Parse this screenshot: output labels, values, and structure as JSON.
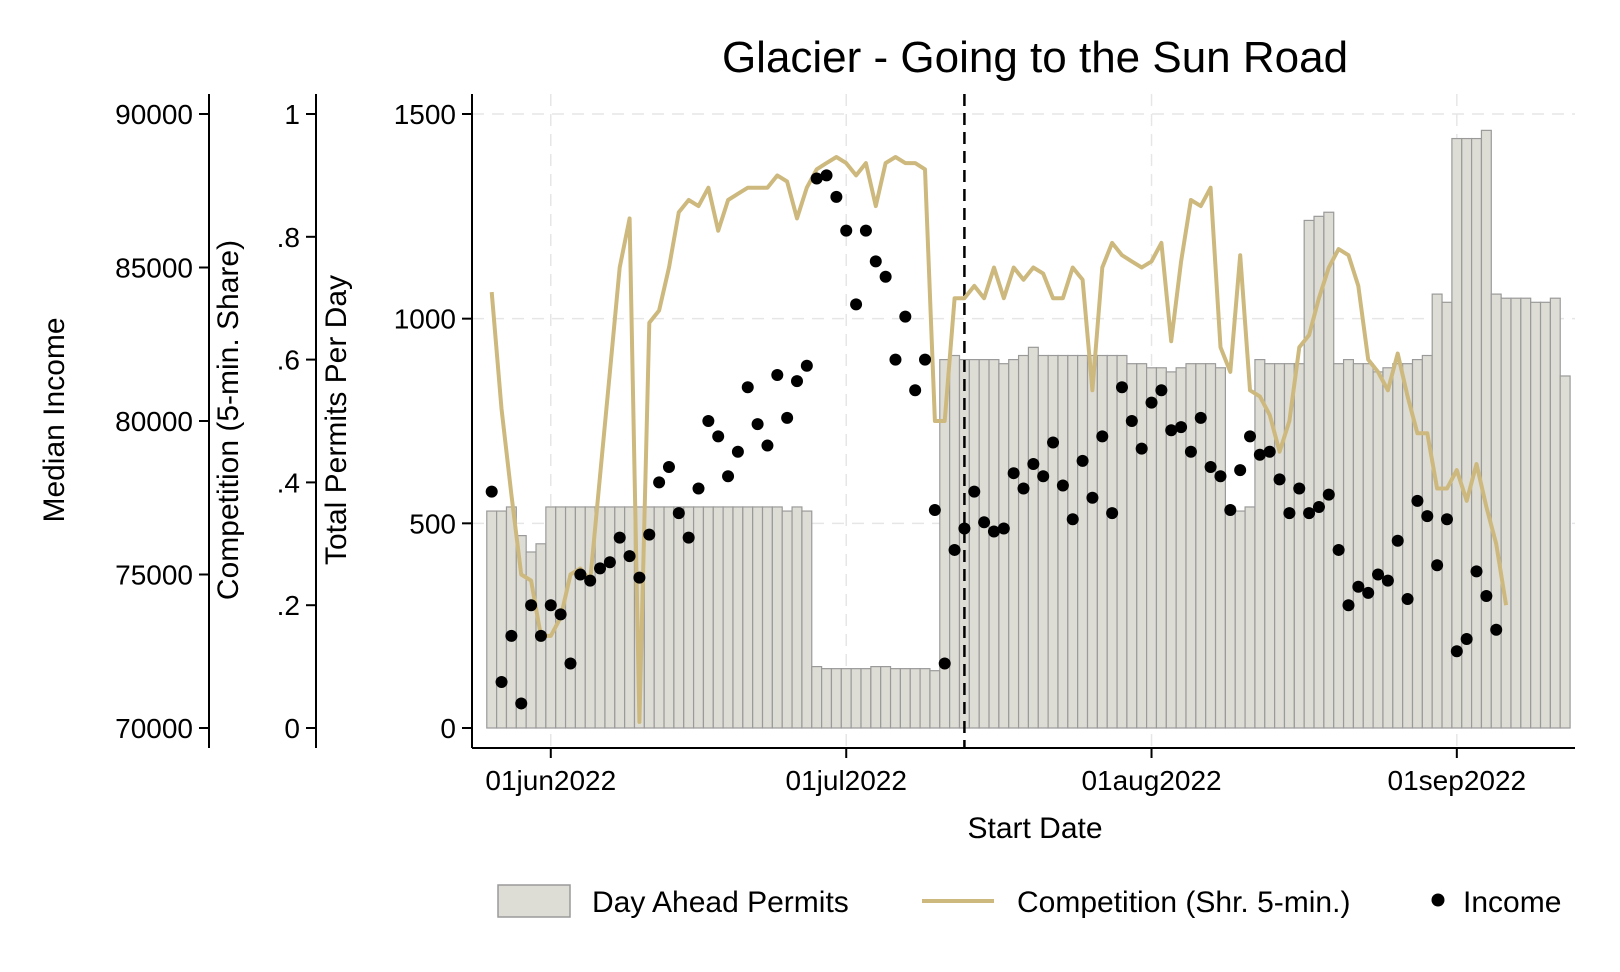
{
  "chart_data": {
    "type": "bar",
    "title": "Glacier - Going to the Sun Road",
    "xlabel": "Start Date",
    "x_tick_labels": [
      "01jun2022",
      "01jul2022",
      "01aug2022",
      "01sep2022"
    ],
    "x_ticks": [
      "2022-06-01",
      "2022-07-01",
      "2022-08-01",
      "2022-09-01"
    ],
    "x_range": [
      "2022-05-24",
      "2022-09-13"
    ],
    "y_axes": [
      {
        "id": "income",
        "label": "Median Income",
        "range": [
          70000,
          90000
        ],
        "ticks": [
          70000,
          75000,
          80000,
          85000,
          90000
        ],
        "tick_labels": [
          "70000",
          "75000",
          "80000",
          "85000",
          "90000"
        ]
      },
      {
        "id": "competition",
        "label": "Competition (5-min. Share)",
        "range": [
          0,
          1
        ],
        "ticks": [
          0,
          0.2,
          0.4,
          0.6,
          0.8,
          1
        ],
        "tick_labels": [
          "0",
          ".2",
          ".4",
          ".6",
          ".8",
          "1"
        ]
      },
      {
        "id": "permits",
        "label": "Total Permits Per Day",
        "range": [
          0,
          1500
        ],
        "ticks": [
          0,
          500,
          1000,
          1500
        ],
        "tick_labels": [
          "0",
          "500",
          "1000",
          "1500"
        ]
      }
    ],
    "grid": true,
    "reference_line": {
      "date": "2022-07-13",
      "style": "dashed"
    },
    "legend": {
      "placement": "bottom-right"
    },
    "colors": {
      "bar_fill": "#deddd5",
      "bar_stroke": "#9a9a9a",
      "line": "#cdb97e",
      "points": "#000000"
    },
    "start_date": "2022-05-26",
    "series": [
      {
        "name": "Day Ahead Permits",
        "kind": "bar",
        "axis": "permits",
        "values": [
          530,
          530,
          540,
          470,
          430,
          450,
          540,
          540,
          540,
          540,
          540,
          540,
          540,
          540,
          540,
          540,
          540,
          540,
          540,
          540,
          540,
          540,
          540,
          540,
          540,
          540,
          540,
          540,
          540,
          540,
          530,
          540,
          530,
          150,
          145,
          145,
          145,
          145,
          145,
          150,
          150,
          145,
          145,
          145,
          145,
          140,
          900,
          910,
          900,
          900,
          900,
          900,
          890,
          900,
          910,
          930,
          910,
          910,
          910,
          910,
          910,
          910,
          910,
          910,
          910,
          890,
          890,
          880,
          880,
          870,
          880,
          890,
          890,
          890,
          880,
          540,
          530,
          540,
          900,
          890,
          890,
          890,
          890,
          1240,
          1250,
          1260,
          890,
          900,
          890,
          890,
          870,
          880,
          890,
          890,
          900,
          910,
          1060,
          1040,
          1440,
          1440,
          1440,
          1460,
          1060,
          1050,
          1050,
          1050,
          1040,
          1040,
          1050,
          860
        ]
      },
      {
        "name": "Competition (Shr. 5-min.)",
        "kind": "line",
        "axis": "competition",
        "values": [
          0.71,
          0.52,
          0.38,
          0.25,
          0.24,
          0.15,
          0.15,
          0.18,
          0.25,
          0.26,
          0.24,
          0.41,
          0.58,
          0.75,
          0.83,
          0.01,
          0.66,
          0.68,
          0.75,
          0.84,
          0.86,
          0.85,
          0.88,
          0.81,
          0.86,
          0.87,
          0.88,
          0.88,
          0.88,
          0.9,
          0.89,
          0.83,
          0.88,
          0.91,
          0.92,
          0.93,
          0.92,
          0.9,
          0.92,
          0.85,
          0.92,
          0.93,
          0.92,
          0.92,
          0.91,
          0.5,
          0.5,
          0.7,
          0.7,
          0.72,
          0.7,
          0.75,
          0.7,
          0.75,
          0.73,
          0.75,
          0.74,
          0.7,
          0.7,
          0.75,
          0.73,
          0.55,
          0.75,
          0.79,
          0.77,
          0.76,
          0.75,
          0.76,
          0.79,
          0.63,
          0.76,
          0.86,
          0.85,
          0.88,
          0.62,
          0.58,
          0.77,
          0.55,
          0.54,
          0.51,
          0.45,
          0.5,
          0.62,
          0.64,
          0.7,
          0.75,
          0.78,
          0.77,
          0.72,
          0.6,
          0.58,
          0.55,
          0.61,
          0.54,
          0.48,
          0.48,
          0.39,
          0.39,
          0.42,
          0.37,
          0.43,
          0.36,
          0.3,
          0.2
        ]
      },
      {
        "name": "Income",
        "kind": "scatter",
        "axis": "income",
        "values": [
          77700,
          71500,
          73000,
          70800,
          74000,
          73000,
          74000,
          73700,
          72100,
          75000,
          74800,
          75200,
          75400,
          76200,
          75600,
          74900,
          76300,
          78000,
          78500,
          77000,
          76200,
          77800,
          80000,
          79500,
          78200,
          79000,
          81100,
          79900,
          79200,
          81500,
          80100,
          81300,
          81800,
          87900,
          88000,
          87300,
          86200,
          83800,
          86200,
          85200,
          84700,
          82000,
          83400,
          81000,
          82000,
          77100,
          72100,
          75800,
          76500,
          77700,
          76700,
          76400,
          76500,
          78300,
          77800,
          78600,
          78200,
          79300,
          77900,
          76800,
          78700,
          77500,
          79500,
          77000,
          81100,
          80000,
          79100,
          80600,
          81000,
          79700,
          79800,
          79000,
          80100,
          78500,
          78200,
          77100,
          78400,
          79500,
          78900,
          79000,
          78100,
          77000,
          77800,
          77000,
          77200,
          77600,
          75800,
          74000,
          74600,
          74400,
          75000,
          74800,
          76100,
          74200,
          77400,
          76900,
          75300,
          76800,
          72500,
          72900,
          75100,
          74300,
          73200
        ]
      }
    ]
  },
  "legend_items": {
    "bars": "Day Ahead Permits",
    "line": "Competition (Shr. 5-min.)",
    "points": "Income"
  }
}
